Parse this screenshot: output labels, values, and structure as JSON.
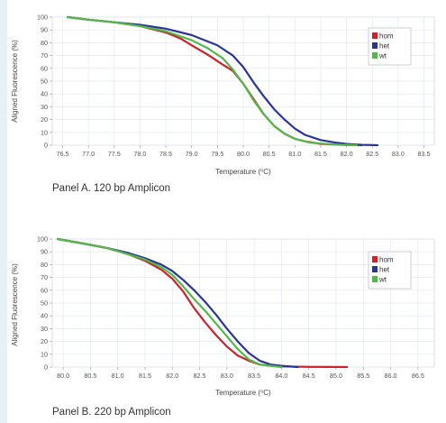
{
  "charts": [
    {
      "id": "panelA",
      "caption": "Panel A. 120 bp Amplicon",
      "chart_data": {
        "type": "line",
        "xlabel": "Temperature (⁰C)",
        "ylabel": "Aligned Fluorescence (%)",
        "xlim": [
          76.3,
          83.7
        ],
        "ylim": [
          0,
          100
        ],
        "xticks": [
          "76.5",
          "77.0",
          "77.5",
          "78.0",
          "78.5",
          "79.0",
          "79.5",
          "80.0",
          "80.5",
          "81.0",
          "81.5",
          "82.0",
          "82.5",
          "83.0",
          "83.5"
        ],
        "yticks": [
          "0",
          "10",
          "20",
          "30",
          "40",
          "50",
          "60",
          "70",
          "80",
          "90",
          "100"
        ],
        "grid": true,
        "legend_position": "top-right",
        "series": [
          {
            "name": "hom",
            "color": "#cc2229",
            "x": [
              76.6,
              77.0,
              77.5,
              78.0,
              78.5,
              78.8,
              79.0,
              79.3,
              79.6,
              79.8,
              80.0,
              80.2,
              80.4,
              80.6,
              80.8,
              81.0,
              81.2,
              81.5,
              81.8,
              82.0,
              82.3
            ],
            "y": [
              100,
              98,
              96,
              93,
              88,
              83,
              78,
              71,
              63,
              58,
              48,
              36,
              24,
              15,
              9,
              5,
              3,
              1,
              0.5,
              0.2,
              0
            ]
          },
          {
            "name": "het",
            "color": "#2b3595",
            "x": [
              76.6,
              77.0,
              77.5,
              78.0,
              78.5,
              79.0,
              79.5,
              79.8,
              80.0,
              80.2,
              80.4,
              80.6,
              80.8,
              81.0,
              81.2,
              81.5,
              81.8,
              82.0,
              82.3,
              82.6
            ],
            "y": [
              100,
              98,
              96,
              94,
              91,
              86,
              78,
              70,
              61,
              49,
              38,
              28,
              20,
              13,
              8,
              4,
              2,
              1,
              0.3,
              0
            ]
          },
          {
            "name": "wt",
            "color": "#52b848",
            "x": [
              76.6,
              77.0,
              77.5,
              78.0,
              78.5,
              79.0,
              79.3,
              79.6,
              79.8,
              80.0,
              80.2,
              80.4,
              80.6,
              80.8,
              81.0,
              81.3,
              81.6,
              81.9,
              82.2
            ],
            "y": [
              100,
              98,
              96,
              93,
              89,
              82,
              76,
              68,
              59,
              48,
              35,
              24,
              15,
              9,
              5,
              2,
              1,
              0.3,
              0
            ]
          }
        ]
      }
    },
    {
      "id": "panelB",
      "caption": "Panel B. 220 bp Amplicon",
      "chart_data": {
        "type": "line",
        "xlabel": "Temperature (⁰C)",
        "ylabel": "Aligned Fluorescence (%)",
        "xlim": [
          79.8,
          86.8
        ],
        "ylim": [
          0,
          100
        ],
        "xticks": [
          "80.0",
          "80.5",
          "81.0",
          "81.5",
          "82.0",
          "82.5",
          "83.0",
          "83.5",
          "84.0",
          "84.5",
          "85.0",
          "85.5",
          "86.0",
          "86.5"
        ],
        "yticks": [
          "0",
          "10",
          "20",
          "30",
          "40",
          "50",
          "60",
          "70",
          "80",
          "90",
          "100"
        ],
        "grid": true,
        "legend_position": "top-right",
        "series": [
          {
            "name": "hom",
            "color": "#cc2229",
            "x": [
              79.9,
              80.3,
              80.8,
              81.2,
              81.5,
              81.8,
              82.0,
              82.2,
              82.4,
              82.6,
              82.8,
              83.0,
              83.2,
              83.4,
              83.6,
              83.8,
              84.0,
              84.5,
              85.0,
              85.2
            ],
            "y": [
              100,
              97,
              93,
              88,
              83,
              76,
              69,
              59,
              46,
              35,
              25,
              16,
              9,
              5,
              2,
              1,
              0.5,
              0.2,
              0.1,
              0
            ]
          },
          {
            "name": "het",
            "color": "#2b3595",
            "x": [
              79.9,
              80.3,
              80.8,
              81.2,
              81.5,
              81.8,
              82.0,
              82.2,
              82.4,
              82.6,
              82.8,
              83.0,
              83.2,
              83.4,
              83.6,
              83.8,
              84.0,
              84.3
            ],
            "y": [
              100,
              97,
              93,
              89,
              85,
              80,
              75,
              68,
              60,
              51,
              41,
              30,
              20,
              11,
              5,
              2,
              1,
              0
            ]
          },
          {
            "name": "wt",
            "color": "#52b848",
            "x": [
              79.9,
              80.3,
              80.8,
              81.2,
              81.5,
              81.8,
              82.0,
              82.2,
              82.4,
              82.6,
              82.8,
              83.0,
              83.2,
              83.4,
              83.6,
              83.8,
              84.0
            ],
            "y": [
              100,
              97,
              93,
              88,
              84,
              78,
              72,
              63,
              53,
              44,
              34,
              24,
              14,
              6,
              2,
              1,
              0
            ]
          }
        ]
      }
    }
  ]
}
